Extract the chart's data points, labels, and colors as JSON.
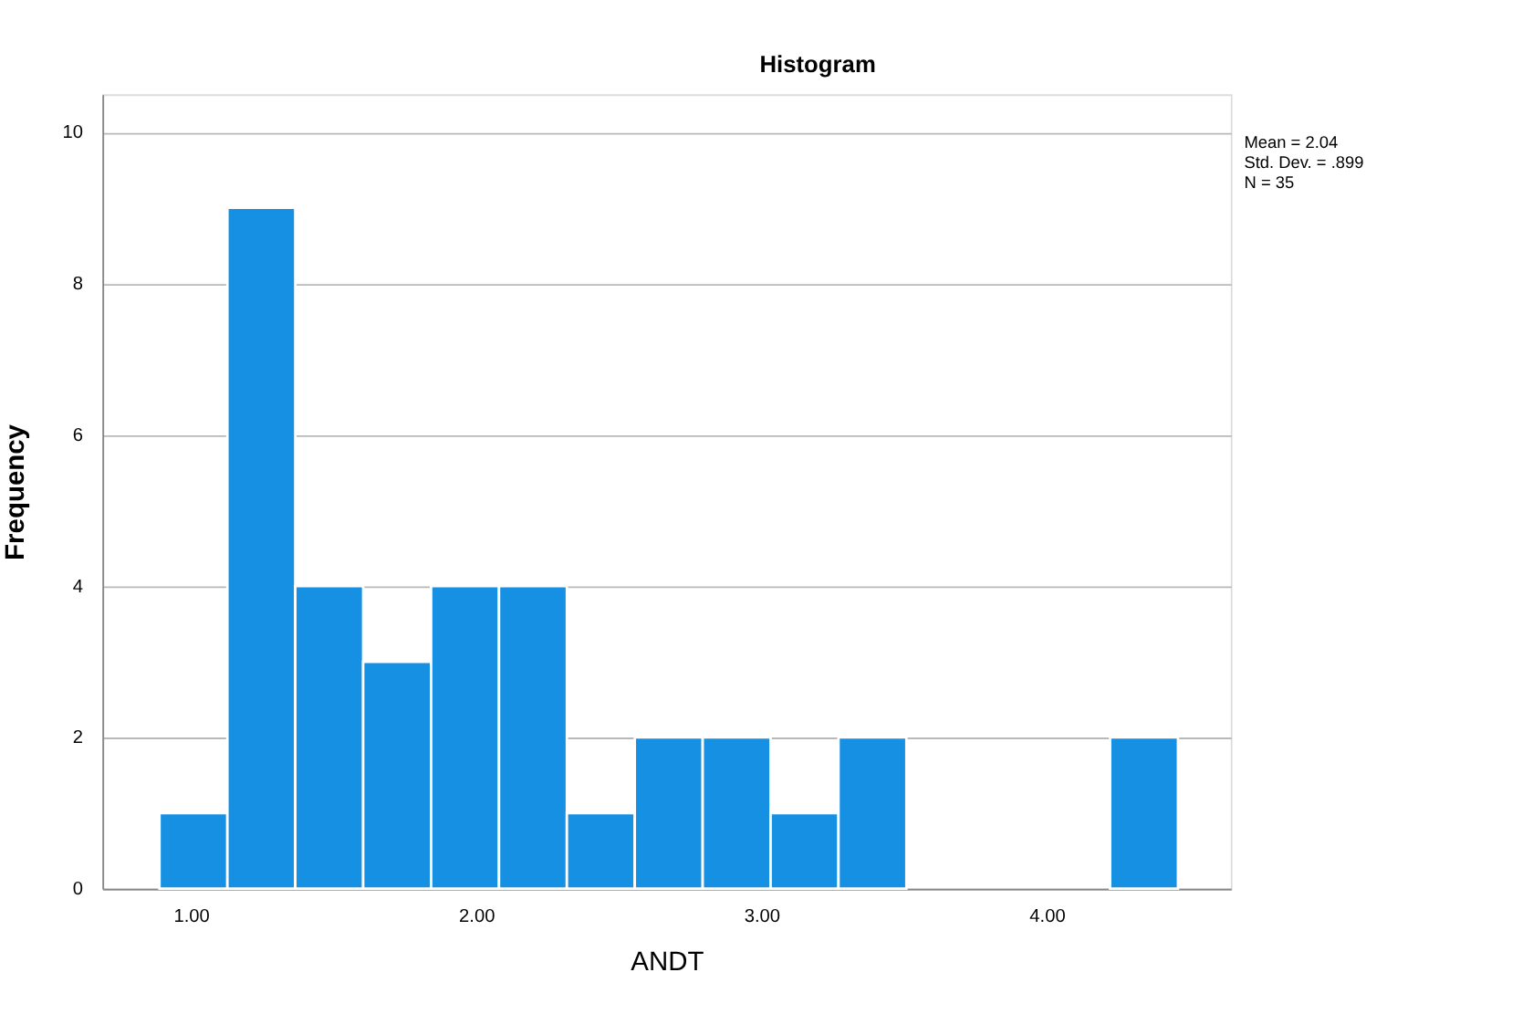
{
  "chart_data": {
    "type": "histogram",
    "title": "Histogram",
    "xlabel": "ANDT",
    "ylabel": "Frequency",
    "bins": [
      0.89,
      1.128,
      1.366,
      1.604,
      1.842,
      2.08,
      2.318,
      2.556,
      2.794,
      3.032,
      3.27,
      3.508,
      3.746,
      3.984,
      4.222,
      4.46
    ],
    "values": [
      1,
      9,
      4,
      3,
      4,
      4,
      1,
      2,
      2,
      1,
      2,
      0,
      0,
      0,
      2
    ],
    "color": "#1690e3",
    "xlim": [
      0.69,
      4.645
    ],
    "xticks": [
      {
        "value": 1,
        "label": "1.00"
      },
      {
        "value": 2,
        "label": "2.00"
      },
      {
        "value": 3,
        "label": "3.00"
      },
      {
        "value": 4,
        "label": "4.00"
      }
    ],
    "ylim": [
      0,
      10.5
    ],
    "yticks": [
      0,
      2,
      4,
      6,
      8,
      10
    ],
    "grid": "y",
    "annotations": [
      "Mean = 2.04",
      "Std. Dev. = .899",
      "N = 35"
    ]
  }
}
